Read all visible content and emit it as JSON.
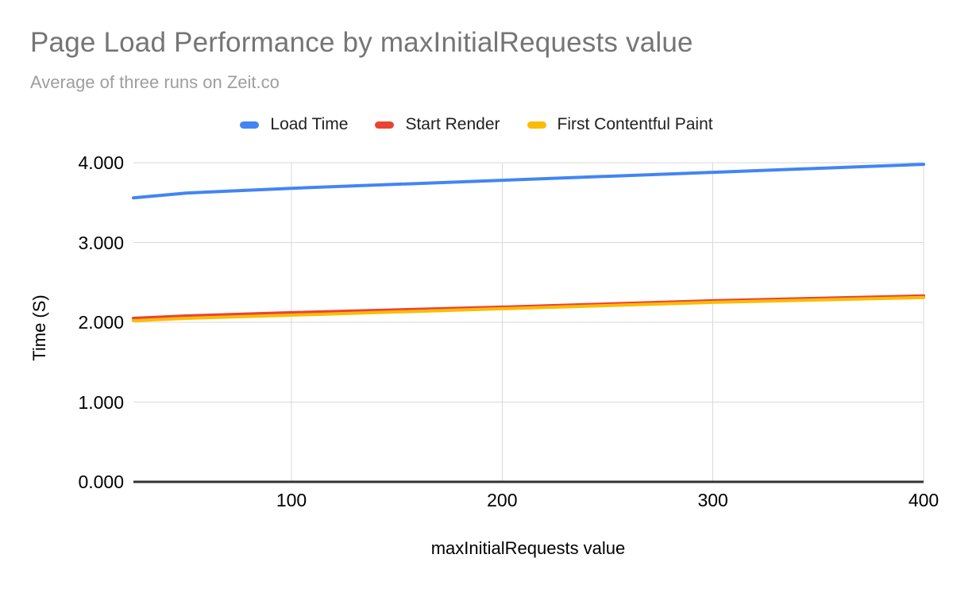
{
  "header": {
    "title": "Page Load Performance by maxInitialRequests value",
    "subtitle": "Average of three runs on Zeit.co"
  },
  "colors": {
    "background": "#ffffff",
    "title_text": "#757575",
    "subtitle_text": "#9e9e9e",
    "axis_text": "#000000",
    "gridline": "#d9d9d9",
    "baseline": "#333333",
    "load_time": "#4285f4",
    "start_render": "#ea4335",
    "first_contentful_paint": "#fbbc04"
  },
  "chart_data": {
    "type": "line",
    "title": "Page Load Performance by maxInitialRequests value",
    "subtitle": "Average of three runs on Zeit.co",
    "xlabel": "maxInitialRequests value",
    "ylabel": "Time (S)",
    "legend_position": "top",
    "grid": true,
    "x": [
      25,
      50,
      100,
      200,
      300,
      400
    ],
    "series": [
      {
        "name": "Load Time",
        "color": "#4285f4",
        "values": [
          3.56,
          3.62,
          3.68,
          3.78,
          3.88,
          3.98
        ]
      },
      {
        "name": "Start Render",
        "color": "#ea4335",
        "values": [
          2.05,
          2.08,
          2.12,
          2.19,
          2.27,
          2.33
        ]
      },
      {
        "name": "First Contentful Paint",
        "color": "#fbbc04",
        "values": [
          2.02,
          2.05,
          2.09,
          2.17,
          2.25,
          2.31
        ]
      }
    ],
    "xlim": [
      25,
      400
    ],
    "ylim": [
      0,
      4
    ],
    "x_ticks": [
      100,
      200,
      300,
      400
    ],
    "x_tick_labels": [
      "100",
      "200",
      "300",
      "400"
    ],
    "y_ticks": [
      0,
      1,
      2,
      3,
      4
    ],
    "y_tick_labels": [
      "0.000",
      "1.000",
      "2.000",
      "3.000",
      "4.000"
    ]
  }
}
